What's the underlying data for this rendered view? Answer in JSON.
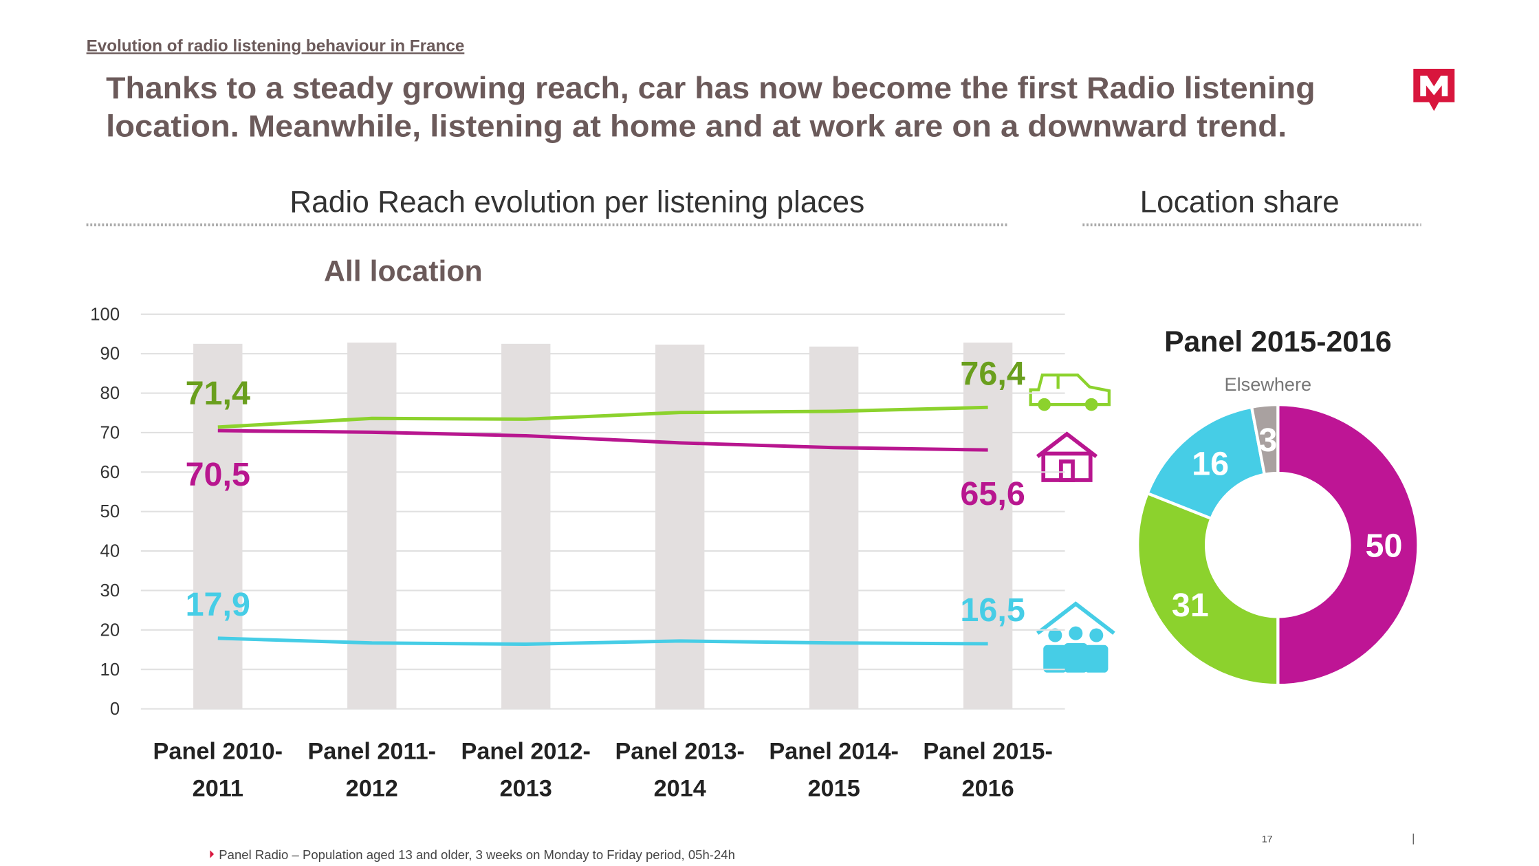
{
  "header": {
    "section": "Evolution of radio listening behaviour in France",
    "headline": [
      "Thanks to a steady growing reach, car has now become the first Radio listening",
      "location. Meanwhile, listening at home and at work are on a downward trend."
    ],
    "left_panel": "Radio Reach evolution per listening places",
    "right_panel": "Location share"
  },
  "chart_data": [
    {
      "type": "combo",
      "categories": [
        "Panel 2010-2011",
        "Panel 2011-2012",
        "Panel 2012-2013",
        "Panel 2013-2014",
        "Panel 2014-2015",
        "Panel 2015-2016"
      ],
      "series": [
        {
          "name": "All location",
          "type": "bar",
          "color": "#e3dfdf",
          "values": [
            92.5,
            92.8,
            92.5,
            92.3,
            91.8,
            92.8
          ]
        },
        {
          "type": "line",
          "color": "#8cd22d",
          "values": [
            71.4,
            73.6,
            73.4,
            75.1,
            75.4,
            76.4
          ],
          "value_labels": [
            "71,4",
            null,
            null,
            null,
            null,
            "76,4"
          ],
          "label_color": "#6a9f1e"
        },
        {
          "type": "line",
          "color": "#b8168f",
          "values": [
            70.5,
            70.1,
            69.2,
            67.4,
            66.2,
            65.6
          ],
          "value_labels": [
            "70,5",
            null,
            null,
            null,
            null,
            "65,6"
          ],
          "label_color": "#b8168f"
        },
        {
          "type": "line",
          "color": "#46cde6",
          "values": [
            17.9,
            16.7,
            16.4,
            17.2,
            16.7,
            16.5
          ],
          "value_labels": [
            "17,9",
            null,
            null,
            null,
            null,
            "16,5"
          ],
          "label_color": "#46cde6"
        }
      ],
      "ylim": [
        0,
        100
      ],
      "yticks": [
        0,
        10,
        20,
        30,
        40,
        50,
        60,
        70,
        80,
        90,
        100
      ],
      "grid": true
    },
    {
      "type": "donut",
      "title": "Panel 2015-2016",
      "categories": [
        null,
        null,
        null,
        "Elsewhere"
      ],
      "values": [
        50,
        31,
        16,
        3
      ],
      "colors": [
        "#be1595",
        "#8cd22d",
        "#46cde6",
        "#a9a1a0"
      ]
    }
  ],
  "footnote": "Panel Radio – Population aged 13 and older, 3 weeks on Monday to Friday period, 05h-24h",
  "page_number": "17"
}
